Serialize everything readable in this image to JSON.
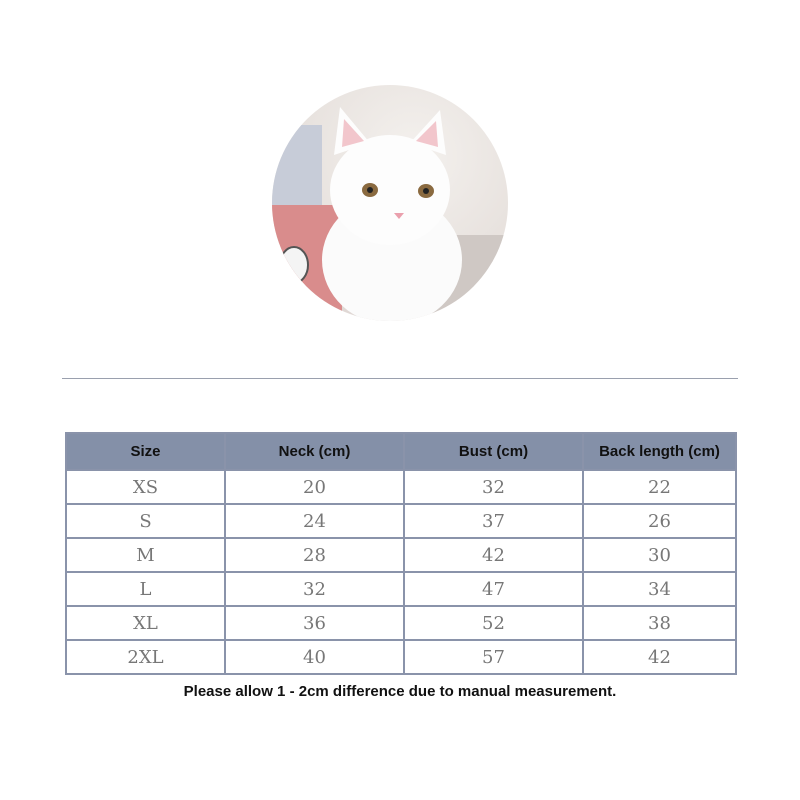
{
  "photo": {
    "subject": "white kitten in pink knit sweater"
  },
  "size_table": {
    "headers": [
      "Size",
      "Neck (cm)",
      "Bust (cm)",
      "Back length (cm)"
    ],
    "rows": [
      [
        "XS",
        "20",
        "32",
        "22"
      ],
      [
        "S",
        "24",
        "37",
        "26"
      ],
      [
        "M",
        "28",
        "42",
        "30"
      ],
      [
        "L",
        "32",
        "47",
        "34"
      ],
      [
        "XL",
        "36",
        "52",
        "38"
      ],
      [
        "2XL",
        "40",
        "57",
        "42"
      ]
    ]
  },
  "note": "Please allow 1 - 2cm difference due to manual measurement.",
  "colors": {
    "header_bg": "#8490a8",
    "border": "#8a93aa"
  }
}
